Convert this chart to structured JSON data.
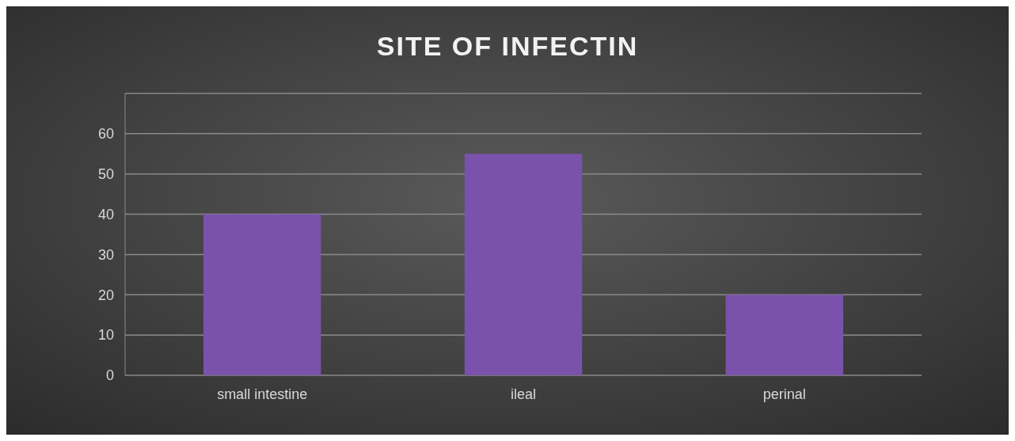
{
  "chart_data": {
    "type": "bar",
    "title": "SITE OF INFECTIN",
    "categories": [
      "small intestine",
      "ileal",
      "perinal"
    ],
    "values": [
      40,
      55,
      20
    ],
    "color": "#7b52ab",
    "ylim": [
      0,
      70
    ],
    "yticks": [
      0,
      10,
      20,
      30,
      40,
      50,
      60,
      {
        "value": 70,
        "label": null
      }
    ],
    "grid": "y"
  }
}
